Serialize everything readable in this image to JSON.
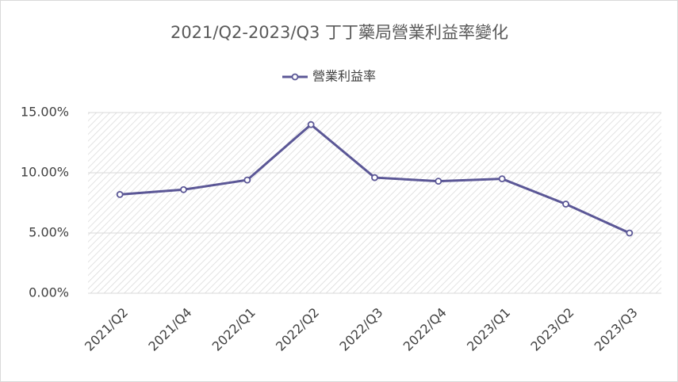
{
  "chart_data": {
    "type": "line",
    "title": "2021/Q2-2023/Q3 丁丁藥局營業利益率變化",
    "categories": [
      "2021/Q2",
      "2021/Q4",
      "2022/Q1",
      "2022/Q2",
      "2022/Q3",
      "2022/Q4",
      "2023/Q1",
      "2023/Q2",
      "2023/Q3"
    ],
    "series": [
      {
        "name": "營業利益率",
        "color": "#5b5796",
        "values": [
          8.2,
          8.6,
          9.4,
          14.0,
          9.6,
          9.3,
          9.5,
          7.4,
          5.0
        ]
      }
    ],
    "ylim": [
      0,
      15
    ],
    "yticks": [
      {
        "value": 0,
        "label": "0.00%"
      },
      {
        "value": 5,
        "label": "5.00%"
      },
      {
        "value": 10,
        "label": "10.00%"
      },
      {
        "value": 15,
        "label": "15.00%"
      }
    ],
    "grid": true,
    "legend": "top"
  }
}
